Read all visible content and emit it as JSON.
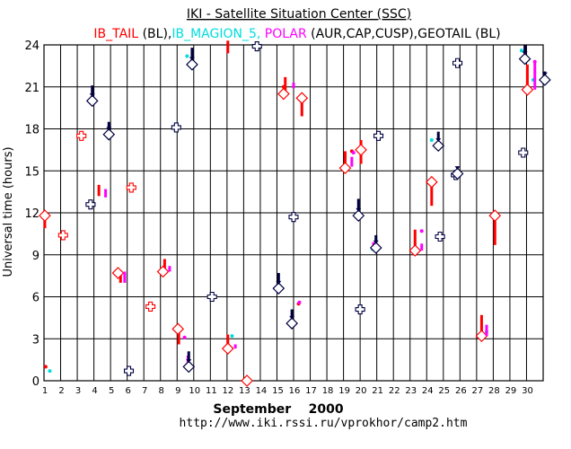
{
  "title_line1": "IKI - Satellite Situation Center (SSC)",
  "title_line2": [
    {
      "text": "IB_TAIL",
      "color": "#ff0000"
    },
    {
      "text": " (BL),",
      "color": "#000000"
    },
    {
      "text": "IB_MAGION_5,",
      "color": "#00dddd"
    },
    {
      "text": " POLAR",
      "color": "#ff00ff"
    },
    {
      "text": " (AUR,CAP,CUSP),",
      "color": "#000000"
    },
    {
      "text": "GEOTAIL",
      "color": "#000000"
    },
    {
      "text": " (BL)",
      "color": "#000000"
    }
  ],
  "x_axis_title": "September    2000",
  "footer_url": "http://www.iki.rssi.ru/vprokhor/camp2.htm",
  "colors": {
    "ib_tail": "#ff0000",
    "magion": "#00dddd",
    "polar": "#ff00ff",
    "geotail": "#000040",
    "grid": "#000000"
  },
  "chart_data": {
    "type": "scatter",
    "title": "IKI - Satellite Situation Center (SSC)",
    "xlabel": "September    2000",
    "ylabel": "Universal time (hours)",
    "xlim": [
      1,
      31
    ],
    "ylim": [
      0,
      24
    ],
    "x_ticks": [
      1,
      2,
      3,
      4,
      5,
      6,
      7,
      8,
      9,
      10,
      11,
      12,
      13,
      14,
      15,
      16,
      17,
      18,
      19,
      20,
      21,
      22,
      23,
      24,
      25,
      26,
      27,
      28,
      29,
      30
    ],
    "y_ticks": [
      0,
      3,
      6,
      9,
      12,
      15,
      18,
      21,
      24
    ],
    "series": [
      {
        "name": "IB_TAIL",
        "color": "#ff0000",
        "diamonds": [
          [
            1.05,
            11.8
          ],
          [
            5.45,
            7.7
          ],
          [
            8.15,
            7.8
          ],
          [
            9.05,
            3.7
          ],
          [
            12.05,
            2.3
          ],
          [
            13.2,
            0.0
          ],
          [
            15.4,
            20.5
          ],
          [
            16.5,
            20.2
          ],
          [
            19.1,
            15.2
          ],
          [
            20.05,
            16.5
          ],
          [
            23.3,
            9.3
          ],
          [
            24.3,
            14.2
          ],
          [
            27.3,
            3.2
          ],
          [
            28.1,
            11.8
          ],
          [
            30.05,
            20.8
          ]
        ],
        "crosses": [
          [
            2.15,
            10.4
          ],
          [
            3.25,
            17.5
          ],
          [
            6.25,
            13.8
          ],
          [
            7.4,
            5.3
          ]
        ],
        "bars": [
          [
            1.05,
            10.9,
            11.8
          ],
          [
            4.3,
            13.2,
            14.0
          ],
          [
            5.6,
            7.0,
            7.9
          ],
          [
            8.25,
            7.8,
            8.7
          ],
          [
            9.1,
            2.6,
            3.7
          ],
          [
            12.05,
            2.3,
            3.3
          ],
          [
            12.05,
            23.4,
            24.3
          ],
          [
            15.5,
            20.5,
            21.7
          ],
          [
            16.5,
            18.9,
            20.2
          ],
          [
            19.1,
            15.2,
            16.4
          ],
          [
            20.05,
            15.5,
            17.2
          ],
          [
            23.3,
            9.3,
            10.8
          ],
          [
            24.3,
            12.5,
            14.2
          ],
          [
            27.3,
            3.2,
            4.7
          ],
          [
            28.1,
            9.7,
            11.8
          ],
          [
            30.05,
            20.8,
            22.6
          ]
        ],
        "dots": [
          [
            1.1,
            1.0
          ],
          [
            16.3,
            5.5
          ],
          [
            15.4,
            21.0
          ],
          [
            19.5,
            16.4
          ]
        ]
      },
      {
        "name": "IB_MAGION_5",
        "color": "#00dddd",
        "dots": [
          [
            1.35,
            0.7
          ],
          [
            9.6,
            23.2
          ],
          [
            12.3,
            3.2
          ],
          [
            20.75,
            9.4
          ],
          [
            24.3,
            17.2
          ],
          [
            29.7,
            23.6
          ],
          [
            27.6,
            3.5
          ],
          [
            30.4,
            21.5
          ]
        ]
      },
      {
        "name": "POLAR",
        "color": "#ff00ff",
        "bars": [
          [
            4.7,
            13.1,
            13.7
          ],
          [
            5.85,
            7.0,
            7.8
          ],
          [
            8.55,
            7.8,
            8.2
          ],
          [
            9.65,
            1.0,
            1.8
          ],
          [
            12.5,
            2.3,
            2.6
          ],
          [
            16.0,
            20.9,
            21.3
          ],
          [
            19.5,
            15.3,
            16.0
          ],
          [
            20.8,
            9.3,
            9.9
          ],
          [
            23.7,
            9.3,
            9.8
          ],
          [
            27.6,
            3.2,
            4.0
          ],
          [
            30.5,
            20.8,
            22.8
          ]
        ],
        "dots": [
          [
            9.45,
            3.1
          ],
          [
            16.35,
            5.6
          ],
          [
            23.7,
            10.7
          ],
          [
            30.5,
            22.8
          ],
          [
            19.6,
            16.3
          ]
        ]
      },
      {
        "name": "GEOTAIL",
        "color": "#000040",
        "diamonds_with_bars": [
          [
            3.9,
            20.0,
            20.7
          ],
          [
            4.9,
            17.6,
            18.1
          ],
          [
            9.7,
            1.0,
            1.7
          ],
          [
            9.9,
            22.6,
            23.4
          ],
          [
            15.1,
            6.6,
            7.3
          ],
          [
            15.9,
            4.1,
            4.7
          ],
          [
            19.9,
            11.8,
            12.6
          ],
          [
            20.95,
            9.5,
            10.0
          ],
          [
            24.7,
            16.8,
            17.4
          ],
          [
            25.85,
            14.8,
            14.9
          ],
          [
            29.9,
            23.0,
            23.6
          ],
          [
            31.1,
            21.5,
            21.7
          ]
        ],
        "crosses": [
          [
            3.8,
            12.6
          ],
          [
            6.1,
            0.7
          ],
          [
            8.95,
            18.1
          ],
          [
            11.1,
            6.0
          ],
          [
            13.8,
            23.9
          ],
          [
            16.0,
            11.7
          ],
          [
            20.0,
            5.1
          ],
          [
            21.1,
            17.5
          ],
          [
            24.8,
            10.3
          ],
          [
            25.85,
            22.7
          ],
          [
            25.75,
            14.7
          ],
          [
            29.8,
            16.3
          ]
        ]
      }
    ],
    "annotations": []
  }
}
